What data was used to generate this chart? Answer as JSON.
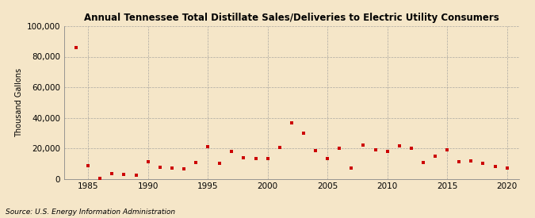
{
  "title": "Annual Tennessee Total Distillate Sales/Deliveries to Electric Utility Consumers",
  "ylabel": "Thousand Gallons",
  "source": "Source: U.S. Energy Information Administration",
  "background_color": "#f5e6c8",
  "plot_bg_color": "#f5e6c8",
  "marker_color": "#cc0000",
  "marker": "s",
  "marker_size": 3.5,
  "xlim": [
    1983,
    2021
  ],
  "ylim": [
    0,
    100000
  ],
  "yticks": [
    0,
    20000,
    40000,
    60000,
    80000,
    100000
  ],
  "xticks": [
    1985,
    1990,
    1995,
    2000,
    2005,
    2010,
    2015,
    2020
  ],
  "years": [
    1984,
    1985,
    1986,
    1987,
    1988,
    1989,
    1990,
    1991,
    1992,
    1993,
    1994,
    1995,
    1996,
    1997,
    1998,
    1999,
    2000,
    2001,
    2002,
    2003,
    2004,
    2005,
    2006,
    2007,
    2008,
    2009,
    2010,
    2011,
    2012,
    2013,
    2014,
    2015,
    2016,
    2017,
    2018,
    2019,
    2020
  ],
  "values": [
    86000,
    8500,
    500,
    3500,
    3000,
    2500,
    11000,
    7500,
    7000,
    6500,
    10500,
    21000,
    10000,
    18000,
    14000,
    13000,
    13000,
    20500,
    36500,
    30000,
    18500,
    13500,
    20000,
    7000,
    22000,
    19000,
    18000,
    21500,
    20000,
    10500,
    15000,
    19000,
    11000,
    11500,
    10000,
    8000,
    7000
  ]
}
